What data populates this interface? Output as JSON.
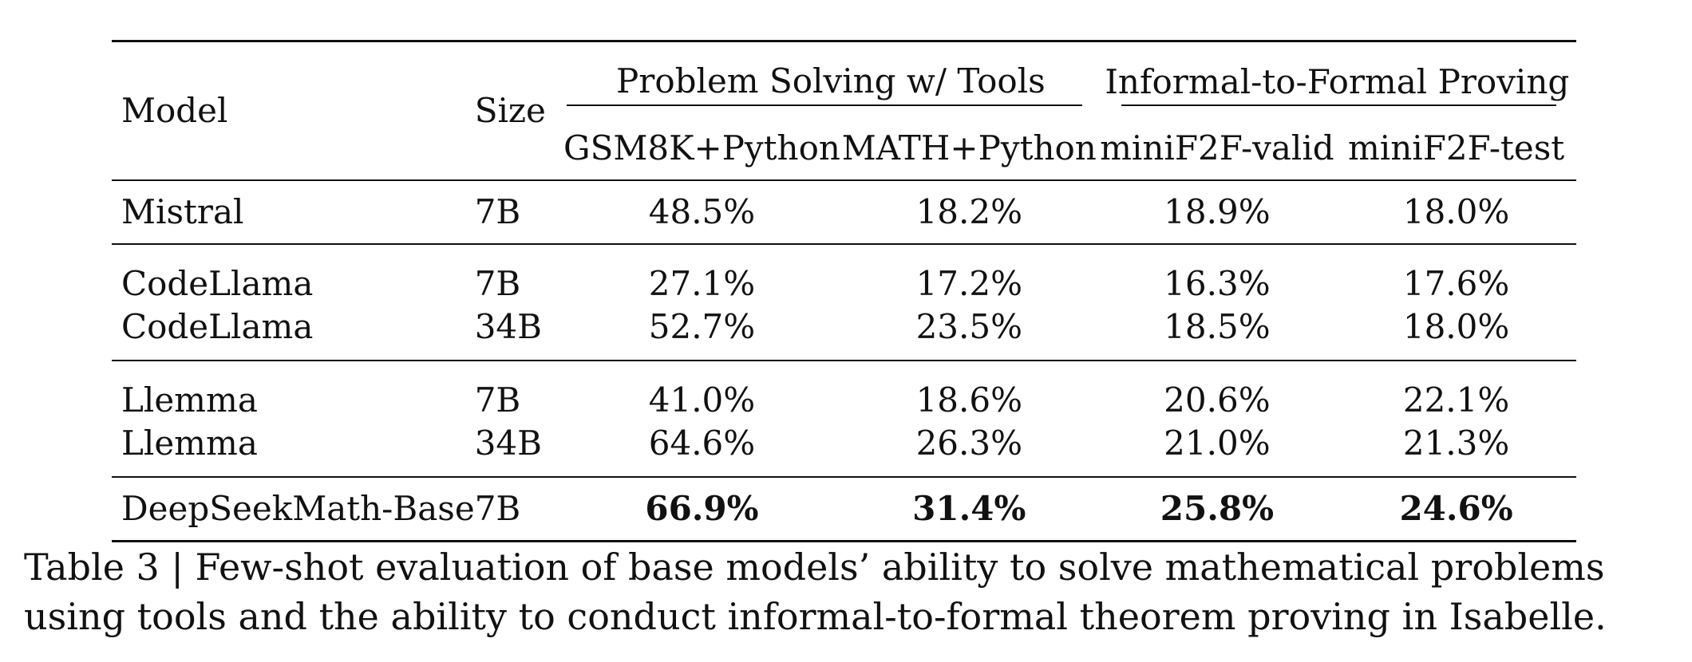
{
  "table": {
    "headers": {
      "model": "Model",
      "size": "Size",
      "group_tools": "Problem Solving w/ Tools",
      "group_proving": "Informal-to-Formal Proving",
      "columns": [
        "GSM8K+Python",
        "MATH+Python",
        "miniF2F-valid",
        "miniF2F-test"
      ]
    },
    "rows": [
      {
        "model": "Mistral",
        "size": "7B",
        "values": [
          "48.5%",
          "18.2%",
          "18.9%",
          "18.0%"
        ]
      },
      {
        "model": "CodeLlama",
        "size": "7B",
        "values": [
          "27.1%",
          "17.2%",
          "16.3%",
          "17.6%"
        ]
      },
      {
        "model": "CodeLlama",
        "size": "34B",
        "values": [
          "52.7%",
          "23.5%",
          "18.5%",
          "18.0%"
        ]
      },
      {
        "model": "Llemma",
        "size": "7B",
        "values": [
          "41.0%",
          "18.6%",
          "20.6%",
          "22.1%"
        ]
      },
      {
        "model": "Llemma",
        "size": "34B",
        "values": [
          "64.6%",
          "26.3%",
          "21.0%",
          "21.3%"
        ]
      },
      {
        "model": "DeepSeekMath-Base",
        "size": "7B",
        "values": [
          "66.9%",
          "31.4%",
          "25.8%",
          "24.6%"
        ]
      }
    ]
  },
  "caption": "Table 3 | Few-shot evaluation of base models’ ability to solve mathematical problems using tools and the ability to conduct informal-to-formal theorem proving in Isabelle."
}
